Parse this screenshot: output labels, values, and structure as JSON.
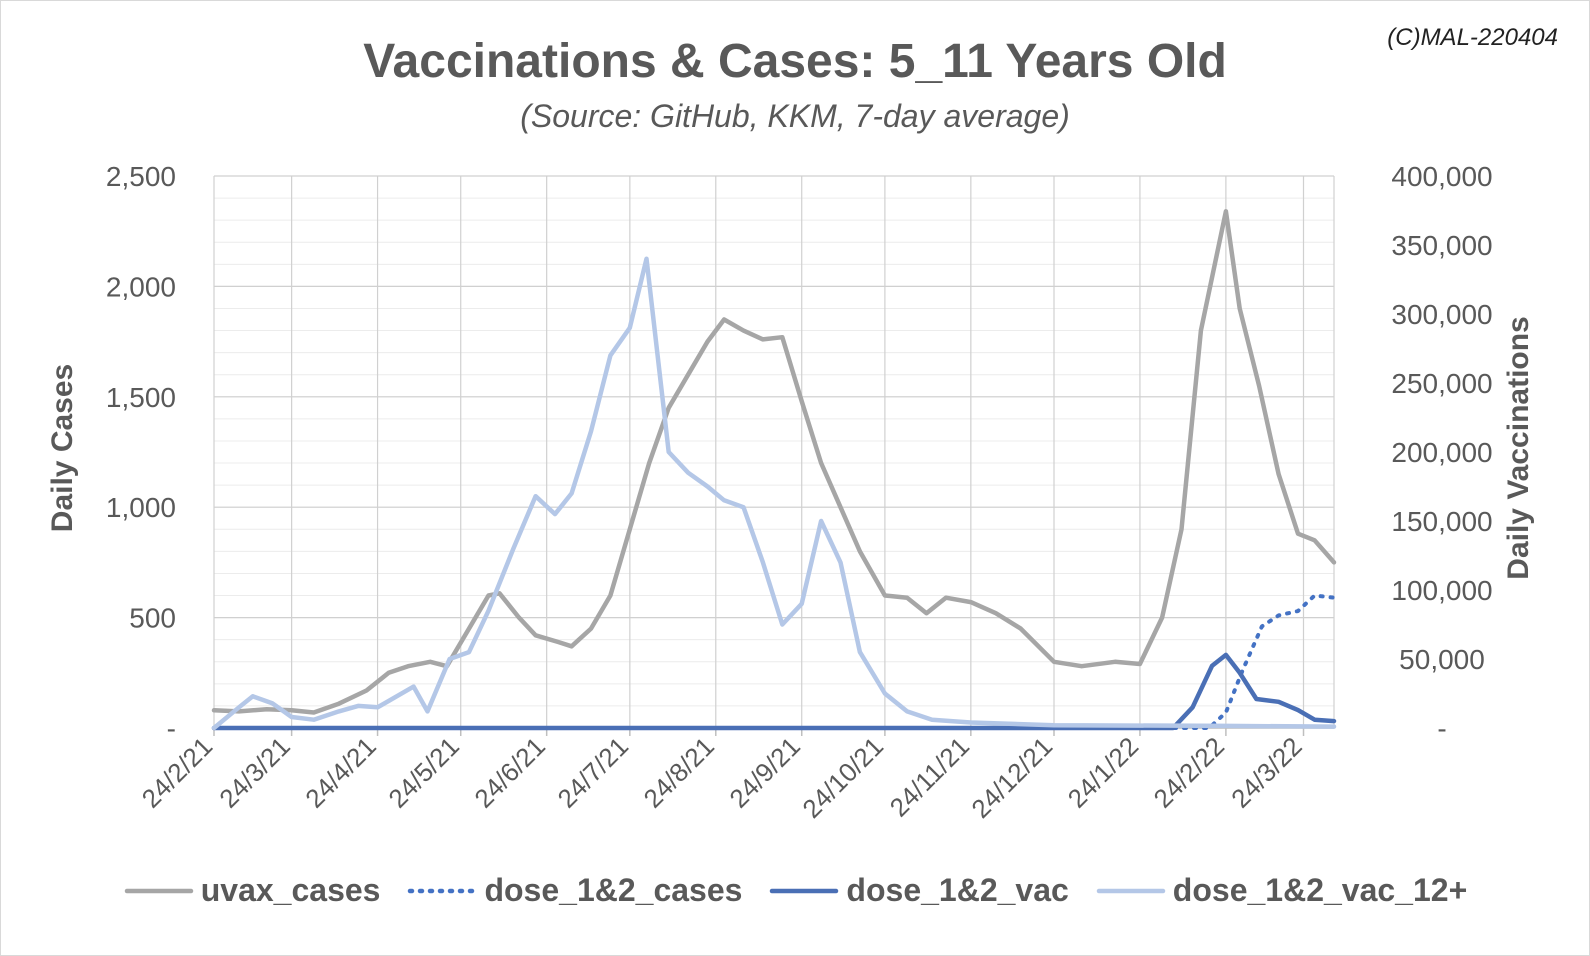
{
  "watermark": "(C)MAL-220404",
  "chart_data": {
    "type": "line",
    "title": "Vaccinations & Cases: 5_11 Years Old",
    "subtitle": "(Source: GitHub, KKM, 7-day average)",
    "ylabel": "Daily Cases",
    "y2label": "Daily Vaccinations",
    "ylim": [
      0,
      2500
    ],
    "y2lim": [
      0,
      400000
    ],
    "yticks": [
      0,
      500,
      1000,
      1500,
      2000,
      2500
    ],
    "ytick_labels": [
      "-",
      "500",
      "1,000",
      "1,500",
      "2,000",
      "2,500"
    ],
    "y2ticks": [
      0,
      50000,
      100000,
      150000,
      200000,
      250000,
      300000,
      350000,
      400000
    ],
    "y2tick_labels": [
      "-",
      "50,000",
      "100,000",
      "150,000",
      "200,000",
      "250,000",
      "300,000",
      "350,000",
      "400,000"
    ],
    "xlim": [
      "2021-02-24",
      "2022-04-04"
    ],
    "xtick_labels": [
      "24/2/21",
      "24/3/21",
      "24/4/21",
      "24/5/21",
      "24/6/21",
      "24/7/21",
      "24/8/21",
      "24/9/21",
      "24/10/21",
      "24/11/21",
      "24/12/21",
      "24/1/22",
      "24/2/22",
      "24/3/22"
    ],
    "xticks": [
      "2021-02-24",
      "2021-03-24",
      "2021-04-24",
      "2021-05-24",
      "2021-06-24",
      "2021-07-24",
      "2021-08-24",
      "2021-09-24",
      "2021-10-24",
      "2021-11-24",
      "2021-12-24",
      "2022-01-24",
      "2022-02-24",
      "2022-03-24"
    ],
    "grid": true,
    "legend_position": "bottom",
    "series": [
      {
        "name": "uvax_cases",
        "axis": "left",
        "color": "#a6a6a6",
        "style": "solid",
        "points": [
          [
            "2021-02-24",
            80
          ],
          [
            "2021-03-05",
            75
          ],
          [
            "2021-03-15",
            85
          ],
          [
            "2021-03-24",
            80
          ],
          [
            "2021-04-01",
            70
          ],
          [
            "2021-04-10",
            110
          ],
          [
            "2021-04-20",
            170
          ],
          [
            "2021-04-28",
            250
          ],
          [
            "2021-05-05",
            280
          ],
          [
            "2021-05-13",
            300
          ],
          [
            "2021-05-19",
            280
          ],
          [
            "2021-05-27",
            450
          ],
          [
            "2021-06-03",
            600
          ],
          [
            "2021-06-07",
            610
          ],
          [
            "2021-06-14",
            500
          ],
          [
            "2021-06-20",
            420
          ],
          [
            "2021-06-28",
            390
          ],
          [
            "2021-07-03",
            370
          ],
          [
            "2021-07-10",
            450
          ],
          [
            "2021-07-17",
            600
          ],
          [
            "2021-07-24",
            900
          ],
          [
            "2021-07-31",
            1200
          ],
          [
            "2021-08-07",
            1450
          ],
          [
            "2021-08-14",
            1600
          ],
          [
            "2021-08-21",
            1750
          ],
          [
            "2021-08-27",
            1850
          ],
          [
            "2021-09-03",
            1800
          ],
          [
            "2021-09-10",
            1760
          ],
          [
            "2021-09-17",
            1770
          ],
          [
            "2021-09-24",
            1480
          ],
          [
            "2021-10-01",
            1200
          ],
          [
            "2021-10-08",
            1000
          ],
          [
            "2021-10-15",
            800
          ],
          [
            "2021-10-24",
            600
          ],
          [
            "2021-11-01",
            590
          ],
          [
            "2021-11-08",
            520
          ],
          [
            "2021-11-15",
            590
          ],
          [
            "2021-11-24",
            570
          ],
          [
            "2021-12-03",
            520
          ],
          [
            "2021-12-12",
            450
          ],
          [
            "2021-12-24",
            300
          ],
          [
            "2022-01-03",
            280
          ],
          [
            "2022-01-15",
            300
          ],
          [
            "2022-01-24",
            290
          ],
          [
            "2022-02-01",
            500
          ],
          [
            "2022-02-08",
            900
          ],
          [
            "2022-02-15",
            1800
          ],
          [
            "2022-02-24",
            2340
          ],
          [
            "2022-03-01",
            1900
          ],
          [
            "2022-03-08",
            1550
          ],
          [
            "2022-03-15",
            1150
          ],
          [
            "2022-03-22",
            880
          ],
          [
            "2022-03-28",
            850
          ],
          [
            "2022-04-04",
            750
          ]
        ]
      },
      {
        "name": "dose_1&2_cases",
        "axis": "left",
        "color": "#4472c4",
        "style": "dotted",
        "points": [
          [
            "2021-02-24",
            0
          ],
          [
            "2022-02-18",
            0
          ],
          [
            "2022-02-24",
            70
          ],
          [
            "2022-03-02",
            260
          ],
          [
            "2022-03-09",
            460
          ],
          [
            "2022-03-15",
            510
          ],
          [
            "2022-03-22",
            530
          ],
          [
            "2022-03-28",
            600
          ],
          [
            "2022-04-04",
            590
          ]
        ]
      },
      {
        "name": "dose_1&2_vac",
        "axis": "right",
        "color": "#4a6fb5",
        "style": "solid",
        "points": [
          [
            "2021-02-24",
            0
          ],
          [
            "2022-02-05",
            0
          ],
          [
            "2022-02-12",
            15000
          ],
          [
            "2022-02-19",
            45000
          ],
          [
            "2022-02-24",
            53000
          ],
          [
            "2022-03-01",
            40000
          ],
          [
            "2022-03-07",
            21000
          ],
          [
            "2022-03-15",
            19000
          ],
          [
            "2022-03-22",
            13000
          ],
          [
            "2022-03-28",
            6000
          ],
          [
            "2022-04-04",
            5000
          ]
        ]
      },
      {
        "name": "dose_1&2_vac_12+",
        "axis": "right",
        "color": "#b4c7e7",
        "style": "solid",
        "points": [
          [
            "2021-02-24",
            0
          ],
          [
            "2021-03-05",
            15000
          ],
          [
            "2021-03-10",
            23000
          ],
          [
            "2021-03-17",
            18000
          ],
          [
            "2021-03-24",
            8000
          ],
          [
            "2021-04-01",
            6000
          ],
          [
            "2021-04-10",
            12000
          ],
          [
            "2021-04-17",
            16000
          ],
          [
            "2021-04-24",
            15000
          ],
          [
            "2021-05-07",
            30000
          ],
          [
            "2021-05-12",
            12000
          ],
          [
            "2021-05-20",
            50000
          ],
          [
            "2021-05-27",
            55000
          ],
          [
            "2021-06-03",
            85000
          ],
          [
            "2021-06-12",
            130000
          ],
          [
            "2021-06-20",
            168000
          ],
          [
            "2021-06-27",
            155000
          ],
          [
            "2021-07-03",
            170000
          ],
          [
            "2021-07-10",
            215000
          ],
          [
            "2021-07-17",
            270000
          ],
          [
            "2021-07-24",
            290000
          ],
          [
            "2021-07-30",
            340000
          ],
          [
            "2021-08-03",
            270000
          ],
          [
            "2021-08-07",
            200000
          ],
          [
            "2021-08-14",
            185000
          ],
          [
            "2021-08-21",
            175000
          ],
          [
            "2021-08-27",
            165000
          ],
          [
            "2021-09-03",
            160000
          ],
          [
            "2021-09-10",
            120000
          ],
          [
            "2021-09-17",
            75000
          ],
          [
            "2021-09-24",
            90000
          ],
          [
            "2021-10-01",
            150000
          ],
          [
            "2021-10-08",
            120000
          ],
          [
            "2021-10-15",
            55000
          ],
          [
            "2021-10-24",
            25000
          ],
          [
            "2021-11-01",
            12000
          ],
          [
            "2021-11-10",
            6000
          ],
          [
            "2021-11-24",
            4000
          ],
          [
            "2021-12-24",
            2000
          ],
          [
            "2022-02-24",
            1500
          ],
          [
            "2022-04-04",
            1000
          ]
        ]
      }
    ]
  }
}
